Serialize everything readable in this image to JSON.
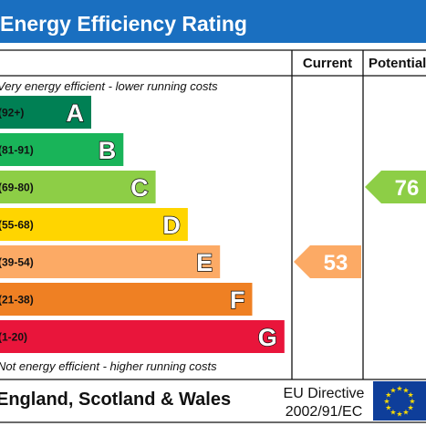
{
  "header": {
    "title": "Energy Efficiency Rating",
    "background": "#1a6fc0"
  },
  "columns": {
    "current_label": "Current",
    "potential_label": "Potential"
  },
  "notes": {
    "top": "Very energy efficient - lower running costs",
    "bottom": "Not energy efficient - higher running costs"
  },
  "footer": {
    "country": "England, Scotland & Wales",
    "eu_line1": "EU Directive",
    "eu_line2": "2002/91/EC",
    "flag_icon": "eu-flag-icon",
    "flag_color": "#0e3e9a",
    "star_color": "#ffdd00"
  },
  "chart_data": {
    "type": "bar",
    "categories": [
      "A",
      "B",
      "C",
      "D",
      "E",
      "F",
      "G"
    ],
    "ranges": [
      "(92+)",
      "(81-91)",
      "(69-80)",
      "(55-68)",
      "(39-54)",
      "(21-38)",
      "(1-20)"
    ],
    "colors": [
      "#008054",
      "#19b459",
      "#8dce46",
      "#ffd500",
      "#fcaa65",
      "#ef8023",
      "#e9153b"
    ],
    "current": {
      "value": 53,
      "band": "E",
      "color": "#fcaa65"
    },
    "potential": {
      "value": 76,
      "band": "C",
      "color": "#8dce46"
    }
  }
}
